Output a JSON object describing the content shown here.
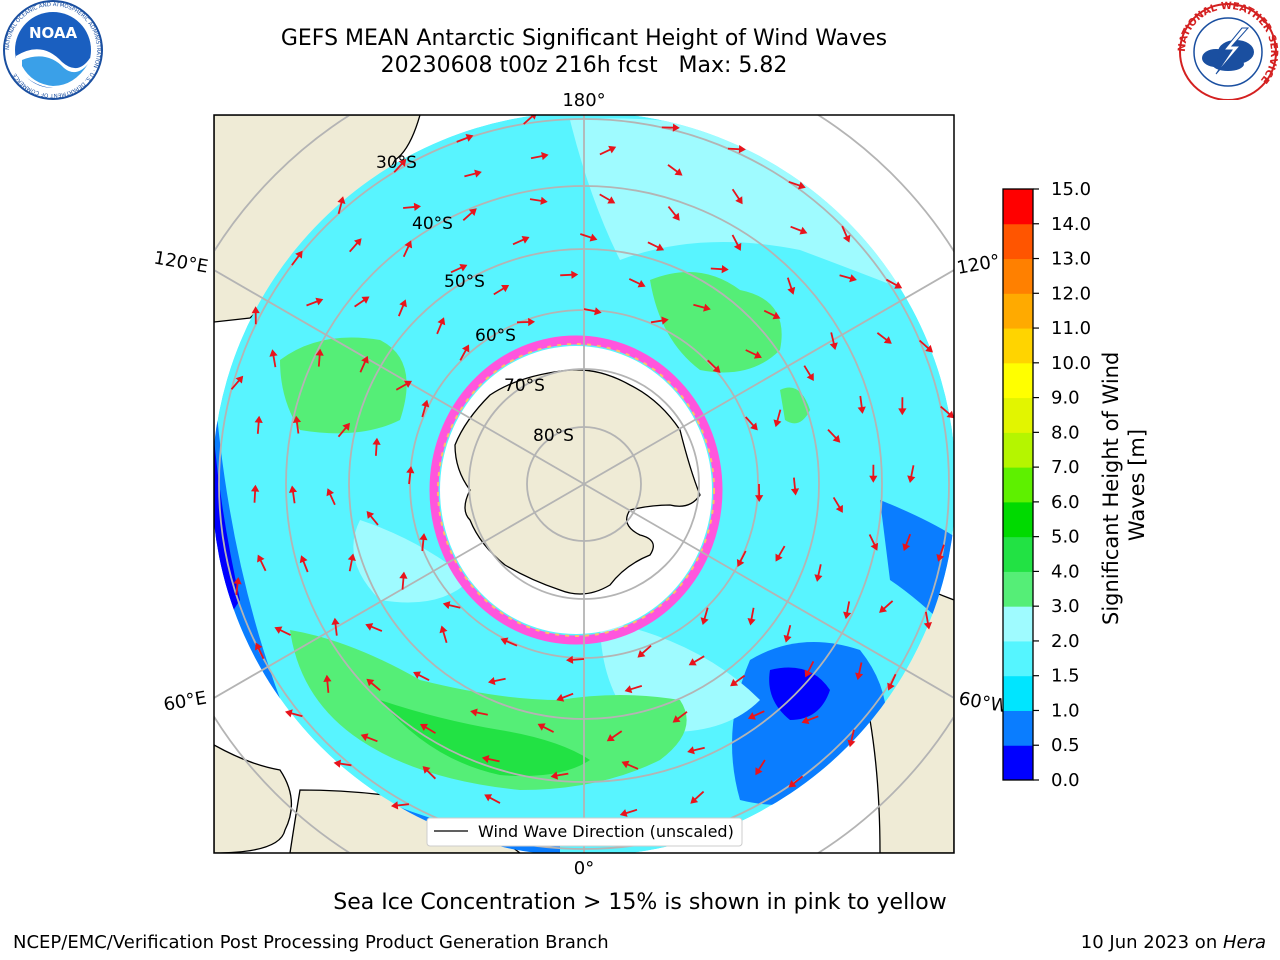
{
  "header": {
    "title_line1": "GEFS MEAN Antarctic Significant Height of Wind Waves",
    "title_line2": "20230608 t00z 216h fcst   Max: 5.82"
  },
  "logos": {
    "left": {
      "icon": "noaa-logo-icon",
      "text": "NOAA",
      "ring_text": "NATIONAL OCEANIC AND ATMOSPHERIC ADMINISTRATION · U.S. DEPARTMENT OF COMMERCE"
    },
    "right": {
      "icon": "nws-logo-icon",
      "ring_text": "NATIONAL WEATHER SERVICE"
    }
  },
  "map": {
    "projection": "south-polar-stereographic",
    "lon_labels": {
      "top": "180°",
      "bottom": "0°",
      "upper_left": "120°E",
      "lower_left": "60°E",
      "upper_right": "120°",
      "lower_right": "60°W"
    },
    "lat_labels": [
      "30°S",
      "40°S",
      "50°S",
      "60°S",
      "70°S",
      "80°S"
    ],
    "legend_label": "Wind Wave Direction (unscaled)",
    "arrow_color": "#e8141c",
    "land_color": "#efebd6",
    "ocean_base_color": "#58f4ff"
  },
  "colorbar": {
    "label": "Significant Height of Wind Waves [m]",
    "ticks": [
      "0.0",
      "0.5",
      "1.0",
      "1.5",
      "2.0",
      "3.0",
      "4.0",
      "5.0",
      "6.0",
      "7.0",
      "8.0",
      "9.0",
      "10.0",
      "11.0",
      "12.0",
      "13.0",
      "14.0",
      "15.0"
    ],
    "colors": [
      "#0000ff",
      "#0a7dff",
      "#00e5ff",
      "#55f5ff",
      "#9ffbff",
      "#55ee77",
      "#22e244",
      "#00da00",
      "#5ef000",
      "#b5f500",
      "#e2f500",
      "#ffff00",
      "#ffd400",
      "#ffaa00",
      "#ff8000",
      "#ff5500",
      "#ff0000"
    ]
  },
  "footer": {
    "ice_note": "Sea Ice Concentration > 15% is shown in pink to yellow",
    "branch": "NCEP/EMC/Verification Post Processing Product Generation Branch",
    "date_text": "10 Jun 2023 on ",
    "machine": "Hera"
  }
}
